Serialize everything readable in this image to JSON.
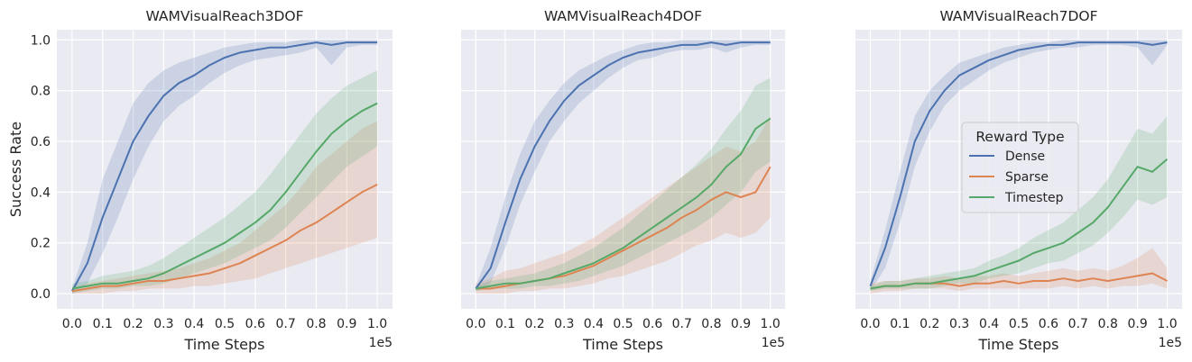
{
  "colors": {
    "Dense": "#4c72b0",
    "Sparse": "#dd8452",
    "Timestep": "#55a868",
    "panel_bg": "#eaeaf2",
    "grid": "#ffffff"
  },
  "chart_data": [
    {
      "type": "line",
      "title": "WAMVisualReach3DOF",
      "xlabel": "Time Steps",
      "ylabel": "Success Rate",
      "x_offset_label": "1e5",
      "xlim": [
        -0.05,
        1.05
      ],
      "ylim": [
        -0.06,
        1.04
      ],
      "xticks": [
        "0.0",
        "0.1",
        "0.2",
        "0.3",
        "0.4",
        "0.5",
        "0.6",
        "0.7",
        "0.8",
        "0.9",
        "1.0"
      ],
      "yticks": [
        "0.0",
        "0.2",
        "0.4",
        "0.6",
        "0.8",
        "1.0"
      ],
      "grid": true,
      "series": [
        {
          "name": "Dense",
          "x": [
            0,
            0.05,
            0.1,
            0.15,
            0.2,
            0.25,
            0.3,
            0.35,
            0.4,
            0.45,
            0.5,
            0.55,
            0.6,
            0.65,
            0.7,
            0.75,
            0.8,
            0.85,
            0.9,
            0.95,
            1.0
          ],
          "y": [
            0.01,
            0.12,
            0.3,
            0.45,
            0.6,
            0.7,
            0.78,
            0.83,
            0.86,
            0.9,
            0.93,
            0.95,
            0.96,
            0.97,
            0.97,
            0.98,
            0.99,
            0.98,
            0.99,
            0.99,
            0.99
          ],
          "lower": [
            0,
            0.04,
            0.16,
            0.3,
            0.45,
            0.58,
            0.68,
            0.74,
            0.78,
            0.83,
            0.87,
            0.9,
            0.92,
            0.93,
            0.94,
            0.95,
            0.97,
            0.9,
            0.97,
            0.98,
            0.98
          ],
          "upper": [
            0.02,
            0.2,
            0.45,
            0.6,
            0.75,
            0.83,
            0.88,
            0.91,
            0.93,
            0.95,
            0.97,
            0.98,
            0.99,
            0.99,
            0.99,
            1,
            1,
            1,
            1,
            1,
            1
          ]
        },
        {
          "name": "Sparse",
          "x": [
            0,
            0.05,
            0.1,
            0.15,
            0.2,
            0.25,
            0.3,
            0.35,
            0.4,
            0.45,
            0.5,
            0.55,
            0.6,
            0.65,
            0.7,
            0.75,
            0.8,
            0.85,
            0.9,
            0.95,
            1.0
          ],
          "y": [
            0.01,
            0.02,
            0.03,
            0.03,
            0.04,
            0.05,
            0.05,
            0.06,
            0.07,
            0.08,
            0.1,
            0.12,
            0.15,
            0.18,
            0.21,
            0.25,
            0.28,
            0.32,
            0.36,
            0.4,
            0.43
          ],
          "lower": [
            0,
            0,
            0,
            0.01,
            0.01,
            0.02,
            0.02,
            0.02,
            0.03,
            0.03,
            0.04,
            0.05,
            0.06,
            0.08,
            0.1,
            0.12,
            0.14,
            0.16,
            0.18,
            0.2,
            0.22
          ],
          "upper": [
            0.02,
            0.04,
            0.05,
            0.06,
            0.07,
            0.08,
            0.09,
            0.1,
            0.12,
            0.14,
            0.17,
            0.2,
            0.25,
            0.3,
            0.35,
            0.42,
            0.5,
            0.55,
            0.6,
            0.65,
            0.68
          ]
        },
        {
          "name": "Timestep",
          "x": [
            0,
            0.05,
            0.1,
            0.15,
            0.2,
            0.25,
            0.3,
            0.35,
            0.4,
            0.45,
            0.5,
            0.55,
            0.6,
            0.65,
            0.7,
            0.75,
            0.8,
            0.85,
            0.9,
            0.95,
            1.0
          ],
          "y": [
            0.02,
            0.03,
            0.04,
            0.04,
            0.05,
            0.06,
            0.08,
            0.11,
            0.14,
            0.17,
            0.2,
            0.24,
            0.28,
            0.33,
            0.4,
            0.48,
            0.56,
            0.63,
            0.68,
            0.72,
            0.75
          ],
          "lower": [
            0,
            0.01,
            0.02,
            0.02,
            0.03,
            0.03,
            0.04,
            0.06,
            0.08,
            0.1,
            0.12,
            0.15,
            0.18,
            0.21,
            0.26,
            0.32,
            0.38,
            0.44,
            0.5,
            0.54,
            0.58
          ],
          "upper": [
            0.04,
            0.05,
            0.07,
            0.08,
            0.09,
            0.11,
            0.14,
            0.18,
            0.22,
            0.26,
            0.3,
            0.35,
            0.4,
            0.47,
            0.55,
            0.63,
            0.71,
            0.77,
            0.82,
            0.85,
            0.88
          ]
        }
      ]
    },
    {
      "type": "line",
      "title": "WAMVisualReach4DOF",
      "xlabel": "Time Steps",
      "ylabel": "",
      "x_offset_label": "1e5",
      "xlim": [
        -0.05,
        1.05
      ],
      "ylim": [
        -0.06,
        1.04
      ],
      "xticks": [
        "0.0",
        "0.1",
        "0.2",
        "0.3",
        "0.4",
        "0.5",
        "0.6",
        "0.7",
        "0.8",
        "0.9",
        "1.0"
      ],
      "yticks": [
        "0.0",
        "0.2",
        "0.4",
        "0.6",
        "0.8",
        "1.0"
      ],
      "grid": true,
      "series": [
        {
          "name": "Dense",
          "x": [
            0,
            0.05,
            0.1,
            0.15,
            0.2,
            0.25,
            0.3,
            0.35,
            0.4,
            0.45,
            0.5,
            0.55,
            0.6,
            0.65,
            0.7,
            0.75,
            0.8,
            0.85,
            0.9,
            0.95,
            1.0
          ],
          "y": [
            0.02,
            0.1,
            0.28,
            0.45,
            0.58,
            0.68,
            0.76,
            0.82,
            0.86,
            0.9,
            0.93,
            0.95,
            0.96,
            0.97,
            0.98,
            0.98,
            0.99,
            0.98,
            0.99,
            0.99,
            0.99
          ],
          "lower": [
            0.01,
            0.04,
            0.18,
            0.35,
            0.48,
            0.6,
            0.68,
            0.75,
            0.8,
            0.85,
            0.89,
            0.92,
            0.93,
            0.95,
            0.96,
            0.96,
            0.97,
            0.95,
            0.97,
            0.98,
            0.98
          ],
          "upper": [
            0.03,
            0.18,
            0.38,
            0.55,
            0.68,
            0.76,
            0.83,
            0.88,
            0.91,
            0.94,
            0.96,
            0.98,
            0.99,
            0.99,
            1,
            1,
            1,
            1,
            1,
            1,
            1
          ]
        },
        {
          "name": "Sparse",
          "x": [
            0,
            0.05,
            0.1,
            0.15,
            0.2,
            0.25,
            0.3,
            0.35,
            0.4,
            0.45,
            0.5,
            0.55,
            0.6,
            0.65,
            0.7,
            0.75,
            0.8,
            0.85,
            0.9,
            0.95,
            1.0
          ],
          "y": [
            0.02,
            0.02,
            0.03,
            0.04,
            0.05,
            0.06,
            0.07,
            0.09,
            0.11,
            0.14,
            0.17,
            0.2,
            0.23,
            0.26,
            0.3,
            0.33,
            0.37,
            0.4,
            0.38,
            0.4,
            0.5
          ],
          "lower": [
            0,
            0,
            0,
            0.01,
            0.01,
            0.02,
            0.02,
            0.03,
            0.04,
            0.06,
            0.07,
            0.09,
            0.11,
            0.13,
            0.16,
            0.19,
            0.21,
            0.24,
            0.22,
            0.24,
            0.3
          ],
          "upper": [
            0.04,
            0.06,
            0.09,
            0.1,
            0.12,
            0.14,
            0.16,
            0.19,
            0.22,
            0.26,
            0.3,
            0.34,
            0.38,
            0.42,
            0.46,
            0.5,
            0.54,
            0.58,
            0.56,
            0.6,
            0.7
          ]
        },
        {
          "name": "Timestep",
          "x": [
            0,
            0.05,
            0.1,
            0.15,
            0.2,
            0.25,
            0.3,
            0.35,
            0.4,
            0.45,
            0.5,
            0.55,
            0.6,
            0.65,
            0.7,
            0.75,
            0.8,
            0.85,
            0.9,
            0.95,
            1.0
          ],
          "y": [
            0.02,
            0.03,
            0.04,
            0.04,
            0.05,
            0.06,
            0.08,
            0.1,
            0.12,
            0.15,
            0.18,
            0.22,
            0.26,
            0.3,
            0.34,
            0.38,
            0.43,
            0.5,
            0.55,
            0.65,
            0.69
          ],
          "lower": [
            0.01,
            0.02,
            0.02,
            0.02,
            0.03,
            0.03,
            0.04,
            0.05,
            0.07,
            0.09,
            0.11,
            0.14,
            0.17,
            0.2,
            0.23,
            0.26,
            0.3,
            0.35,
            0.4,
            0.48,
            0.52
          ],
          "upper": [
            0.03,
            0.05,
            0.06,
            0.07,
            0.08,
            0.1,
            0.12,
            0.15,
            0.18,
            0.22,
            0.26,
            0.31,
            0.36,
            0.41,
            0.46,
            0.51,
            0.57,
            0.65,
            0.72,
            0.82,
            0.85
          ]
        }
      ]
    },
    {
      "type": "line",
      "title": "WAMVisualReach7DOF",
      "xlabel": "Time Steps",
      "ylabel": "",
      "x_offset_label": "1e5",
      "xlim": [
        -0.05,
        1.05
      ],
      "ylim": [
        -0.06,
        1.04
      ],
      "xticks": [
        "0.0",
        "0.1",
        "0.2",
        "0.3",
        "0.4",
        "0.5",
        "0.6",
        "0.7",
        "0.8",
        "0.9",
        "1.0"
      ],
      "yticks": [
        "0.0",
        "0.2",
        "0.4",
        "0.6",
        "0.8",
        "1.0"
      ],
      "grid": true,
      "legend": {
        "title": "Reward Type",
        "placement": "center-right",
        "entries": [
          "Dense",
          "Sparse",
          "Timestep"
        ]
      },
      "series": [
        {
          "name": "Dense",
          "x": [
            0,
            0.05,
            0.1,
            0.15,
            0.2,
            0.25,
            0.3,
            0.35,
            0.4,
            0.45,
            0.5,
            0.55,
            0.6,
            0.65,
            0.7,
            0.75,
            0.8,
            0.85,
            0.9,
            0.95,
            1.0
          ],
          "y": [
            0.03,
            0.18,
            0.38,
            0.6,
            0.72,
            0.8,
            0.86,
            0.89,
            0.92,
            0.94,
            0.96,
            0.97,
            0.98,
            0.98,
            0.99,
            0.99,
            0.99,
            0.99,
            0.99,
            0.98,
            0.99
          ],
          "lower": [
            0.01,
            0.1,
            0.28,
            0.5,
            0.64,
            0.74,
            0.8,
            0.84,
            0.88,
            0.91,
            0.93,
            0.95,
            0.96,
            0.97,
            0.97,
            0.98,
            0.98,
            0.98,
            0.97,
            0.9,
            0.98
          ],
          "upper": [
            0.05,
            0.25,
            0.48,
            0.7,
            0.8,
            0.86,
            0.91,
            0.93,
            0.95,
            0.97,
            0.98,
            0.99,
            0.99,
            1,
            1,
            1,
            1,
            1,
            1,
            1,
            1
          ]
        },
        {
          "name": "Sparse",
          "x": [
            0,
            0.05,
            0.1,
            0.15,
            0.2,
            0.25,
            0.3,
            0.35,
            0.4,
            0.45,
            0.5,
            0.55,
            0.6,
            0.65,
            0.7,
            0.75,
            0.8,
            0.85,
            0.9,
            0.95,
            1.0
          ],
          "y": [
            0.02,
            0.03,
            0.03,
            0.04,
            0.04,
            0.04,
            0.03,
            0.04,
            0.04,
            0.05,
            0.04,
            0.05,
            0.05,
            0.06,
            0.05,
            0.06,
            0.05,
            0.06,
            0.07,
            0.08,
            0.05
          ],
          "lower": [
            0,
            0.01,
            0.01,
            0.02,
            0.02,
            0.02,
            0.01,
            0.02,
            0.02,
            0.02,
            0.02,
            0.02,
            0.02,
            0.03,
            0.02,
            0.03,
            0.02,
            0.03,
            0.03,
            0.04,
            0.02
          ],
          "upper": [
            0.04,
            0.05,
            0.05,
            0.06,
            0.06,
            0.07,
            0.06,
            0.07,
            0.07,
            0.08,
            0.07,
            0.08,
            0.09,
            0.1,
            0.09,
            0.1,
            0.09,
            0.11,
            0.14,
            0.18,
            0.1
          ]
        },
        {
          "name": "Timestep",
          "x": [
            0,
            0.05,
            0.1,
            0.15,
            0.2,
            0.25,
            0.3,
            0.35,
            0.4,
            0.45,
            0.5,
            0.55,
            0.6,
            0.65,
            0.7,
            0.75,
            0.8,
            0.85,
            0.9,
            0.95,
            1.0
          ],
          "y": [
            0.02,
            0.03,
            0.03,
            0.04,
            0.04,
            0.05,
            0.06,
            0.07,
            0.09,
            0.11,
            0.13,
            0.16,
            0.18,
            0.2,
            0.24,
            0.28,
            0.34,
            0.42,
            0.5,
            0.48,
            0.53
          ],
          "lower": [
            0.01,
            0.02,
            0.02,
            0.02,
            0.02,
            0.03,
            0.04,
            0.04,
            0.06,
            0.07,
            0.08,
            0.1,
            0.12,
            0.13,
            0.16,
            0.19,
            0.24,
            0.3,
            0.37,
            0.35,
            0.38
          ],
          "upper": [
            0.03,
            0.05,
            0.05,
            0.06,
            0.07,
            0.08,
            0.09,
            0.1,
            0.13,
            0.15,
            0.18,
            0.22,
            0.25,
            0.28,
            0.33,
            0.38,
            0.45,
            0.55,
            0.65,
            0.63,
            0.7
          ]
        }
      ]
    }
  ]
}
